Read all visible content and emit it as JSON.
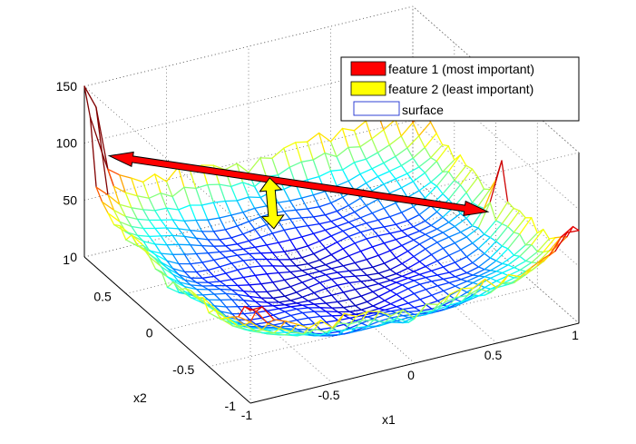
{
  "chart_data": {
    "type": "surface",
    "title": "",
    "xlabel": "x1",
    "ylabel": "x2",
    "zlabel": "",
    "xlim": [
      -1,
      1
    ],
    "ylim": [
      -1,
      1
    ],
    "zlim": [
      0,
      150
    ],
    "x_ticks": [
      "-1",
      "-0.5",
      "0",
      "0.5",
      "1"
    ],
    "y_ticks": [
      "-1",
      "-0.5",
      "0",
      "0.5",
      "1"
    ],
    "z_ticks": [
      "0",
      "50",
      "100",
      "150"
    ],
    "grid": true,
    "box": "full",
    "legend_position": "top-right",
    "legend": [
      {
        "key": "feature1",
        "label": "feature 1 (most important)",
        "color": "#ff0000"
      },
      {
        "key": "feature2",
        "label": "feature 2 (least important)",
        "color": "#ffff00"
      },
      {
        "key": "surface",
        "label": "surface",
        "color": "#ffffff"
      }
    ],
    "colormap": "jet",
    "arrows": [
      {
        "name": "feature1",
        "color": "#ff0000",
        "from": [
          -0.95,
          0.8,
          100
        ],
        "to": [
          0.8,
          -0.3,
          60
        ]
      },
      {
        "name": "feature2",
        "color": "#ffff00",
        "from": [
          -0.25,
          0.2,
          50
        ],
        "to": [
          -0.15,
          0.45,
          75
        ]
      }
    ]
  }
}
